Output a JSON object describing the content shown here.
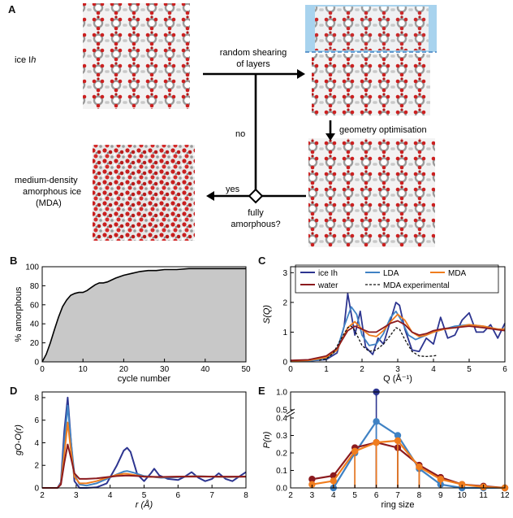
{
  "panels": {
    "A": {
      "label": "A",
      "ice_ih_prefix": "ice I",
      "ice_ih_suffix": "h",
      "shear_line1": "random shearing",
      "shear_line2": "of layers",
      "geometry_opt": "geometry optimisation",
      "no": "no",
      "yes": "yes",
      "mda_line1": "medium-density",
      "mda_line2": "amorphous ice",
      "mda_line3": "(MDA)",
      "decision_line1": "fully",
      "decision_line2": "amorphous?"
    },
    "B": {
      "label": "B"
    },
    "C": {
      "label": "C"
    },
    "D": {
      "label": "D"
    },
    "E": {
      "label": "E"
    }
  },
  "colors": {
    "ice": "#2d3590",
    "lda": "#3f82c4",
    "mda": "#f07d1e",
    "water": "#8b1a1e",
    "exp": "#111111",
    "fill": "#c8c8c8"
  },
  "chart_data": [
    {
      "panel": "B",
      "type": "area",
      "xlabel": "cycle number",
      "ylabel": "% amorphous",
      "xlim": [
        0,
        50
      ],
      "ylim": [
        0,
        100
      ],
      "xticks": [
        0,
        10,
        20,
        30,
        40,
        50
      ],
      "yticks": [
        0,
        20,
        40,
        60,
        80,
        100
      ],
      "x": [
        0,
        1,
        2,
        3,
        4,
        5,
        6,
        7,
        8,
        9,
        10,
        11,
        12,
        13,
        14,
        15,
        16,
        17,
        18,
        20,
        22,
        24,
        26,
        28,
        30,
        33,
        36,
        40,
        45,
        50
      ],
      "y": [
        0,
        8,
        20,
        34,
        47,
        58,
        65,
        70,
        72,
        73,
        73,
        75,
        78,
        81,
        83,
        83,
        84,
        86,
        88,
        91,
        93,
        95,
        96,
        96,
        97,
        97,
        98,
        98,
        98,
        98
      ]
    },
    {
      "panel": "C",
      "type": "line",
      "xlabel": "Q (Å⁻¹)",
      "ylabel": "S(Q)",
      "xlim": [
        0,
        6
      ],
      "ylim": [
        0,
        3.2
      ],
      "xticks": [
        0,
        1,
        2,
        3,
        4,
        5,
        6
      ],
      "yticks": [
        0,
        1,
        2,
        3
      ],
      "legend": [
        "ice Ih",
        "LDA",
        "MDA",
        "water",
        "MDA experimental"
      ],
      "series": [
        {
          "name": "ice Ih",
          "color": "#2d3590",
          "x": [
            0,
            0.5,
            1.0,
            1.3,
            1.5,
            1.6,
            1.7,
            1.8,
            1.95,
            2.1,
            2.3,
            2.45,
            2.6,
            2.8,
            2.95,
            3.05,
            3.2,
            3.4,
            3.6,
            3.8,
            4.0,
            4.2,
            4.4,
            4.6,
            4.8,
            5.0,
            5.2,
            5.4,
            5.6,
            5.8,
            6.0
          ],
          "y": [
            0.02,
            0.03,
            0.08,
            0.3,
            1.2,
            2.3,
            1.6,
            0.9,
            1.7,
            0.5,
            0.25,
            0.8,
            0.6,
            1.4,
            2.0,
            1.9,
            1.1,
            0.4,
            0.35,
            0.8,
            0.6,
            1.5,
            0.8,
            0.9,
            1.4,
            1.65,
            1.0,
            1.0,
            1.25,
            0.8,
            1.3
          ]
        },
        {
          "name": "LDA",
          "color": "#3f82c4",
          "x": [
            0,
            0.5,
            1.0,
            1.3,
            1.5,
            1.7,
            1.85,
            2.0,
            2.2,
            2.4,
            2.6,
            2.8,
            2.95,
            3.1,
            3.3,
            3.5,
            3.7,
            4.0,
            4.3,
            4.6,
            5.0,
            5.4,
            5.8,
            6.0
          ],
          "y": [
            0.02,
            0.03,
            0.1,
            0.4,
            1.2,
            1.85,
            1.6,
            0.9,
            0.55,
            0.6,
            0.95,
            1.5,
            1.7,
            1.4,
            0.9,
            0.75,
            0.85,
            1.0,
            1.1,
            1.2,
            1.25,
            1.2,
            1.1,
            1.1
          ]
        },
        {
          "name": "MDA",
          "color": "#f07d1e",
          "x": [
            0,
            0.5,
            1.0,
            1.3,
            1.6,
            1.8,
            2.0,
            2.2,
            2.4,
            2.6,
            2.8,
            3.0,
            3.2,
            3.4,
            3.6,
            3.8,
            4.0,
            4.3,
            4.6,
            5.0,
            5.4,
            5.8,
            6.0
          ],
          "y": [
            0.03,
            0.05,
            0.15,
            0.4,
            1.15,
            1.35,
            1.1,
            0.9,
            0.85,
            1.05,
            1.35,
            1.6,
            1.4,
            1.0,
            0.85,
            0.9,
            1.0,
            1.1,
            1.15,
            1.25,
            1.2,
            1.1,
            1.1
          ]
        },
        {
          "name": "water",
          "color": "#8b1a1e",
          "x": [
            0,
            0.5,
            1.0,
            1.3,
            1.6,
            1.8,
            2.0,
            2.2,
            2.4,
            2.6,
            2.8,
            3.0,
            3.2,
            3.4,
            3.6,
            3.8,
            4.0,
            4.3,
            4.6,
            5.0,
            5.4,
            5.8,
            6.0
          ],
          "y": [
            0.05,
            0.07,
            0.2,
            0.45,
            1.05,
            1.2,
            1.1,
            1.0,
            1.0,
            1.15,
            1.3,
            1.38,
            1.25,
            1.0,
            0.9,
            0.95,
            1.05,
            1.12,
            1.15,
            1.2,
            1.15,
            1.08,
            1.05
          ]
        },
        {
          "name": "MDA experimental",
          "color": "#111111",
          "dashed": true,
          "x": [
            0.8,
            1.0,
            1.2,
            1.4,
            1.6,
            1.7,
            1.8,
            1.9,
            2.0,
            2.2,
            2.4,
            2.6,
            2.8,
            2.95,
            3.05,
            3.2,
            3.4,
            3.6,
            3.8,
            4.0,
            4.1
          ],
          "y": [
            0.05,
            0.1,
            0.3,
            0.75,
            1.15,
            1.2,
            1.05,
            0.8,
            0.55,
            0.35,
            0.4,
            0.6,
            0.9,
            1.15,
            1.1,
            0.75,
            0.35,
            0.2,
            0.18,
            0.2,
            0.22
          ]
        }
      ]
    },
    {
      "panel": "D",
      "type": "line",
      "xlabel": "r (Å)",
      "ylabel": "gO-O(r)",
      "xlim": [
        2,
        8
      ],
      "ylim": [
        0,
        8.5
      ],
      "xticks": [
        2,
        3,
        4,
        5,
        6,
        7,
        8
      ],
      "yticks": [
        0,
        2,
        4,
        6,
        8
      ],
      "series": [
        {
          "name": "ice Ih",
          "color": "#2d3590",
          "x": [
            2.0,
            2.45,
            2.55,
            2.65,
            2.75,
            2.85,
            2.95,
            3.1,
            3.3,
            3.6,
            3.9,
            4.2,
            4.4,
            4.5,
            4.6,
            4.8,
            5.0,
            5.2,
            5.3,
            5.45,
            5.7,
            6.0,
            6.2,
            6.4,
            6.6,
            6.8,
            7.0,
            7.2,
            7.4,
            7.6,
            7.8,
            8.0
          ],
          "y": [
            0,
            0,
            0.5,
            5.0,
            8.0,
            4.0,
            0.6,
            0,
            0,
            0.05,
            0.4,
            2.0,
            3.3,
            3.55,
            3.2,
            1.2,
            0.6,
            1.3,
            1.7,
            1.1,
            0.8,
            0.7,
            1.0,
            1.4,
            0.9,
            0.6,
            0.8,
            1.3,
            0.8,
            0.6,
            1.0,
            1.4
          ]
        },
        {
          "name": "LDA",
          "color": "#3f82c4",
          "x": [
            2.0,
            2.45,
            2.55,
            2.65,
            2.75,
            2.85,
            2.95,
            3.1,
            3.3,
            3.6,
            3.9,
            4.2,
            4.4,
            4.5,
            4.7,
            5.0,
            5.5,
            6.0,
            6.5,
            7.0,
            7.5,
            8.0
          ],
          "y": [
            0,
            0,
            0.4,
            4.0,
            7.3,
            4.0,
            1.2,
            0.3,
            0.2,
            0.4,
            0.8,
            1.2,
            1.45,
            1.5,
            1.35,
            1.05,
            0.9,
            0.95,
            1.05,
            1.0,
            0.95,
            1.0
          ]
        },
        {
          "name": "MDA",
          "color": "#f07d1e",
          "x": [
            2.0,
            2.45,
            2.55,
            2.65,
            2.75,
            2.85,
            2.95,
            3.1,
            3.3,
            3.6,
            3.9,
            4.2,
            4.4,
            4.5,
            4.7,
            5.0,
            5.5,
            6.0,
            6.5,
            7.0,
            7.5,
            8.0
          ],
          "y": [
            0,
            0,
            0.35,
            3.0,
            5.8,
            3.2,
            1.0,
            0.4,
            0.4,
            0.6,
            0.9,
            1.15,
            1.25,
            1.25,
            1.15,
            1.0,
            0.95,
            1.0,
            1.02,
            1.0,
            0.98,
            1.0
          ]
        },
        {
          "name": "water",
          "color": "#8b1a1e",
          "x": [
            2.0,
            2.45,
            2.55,
            2.65,
            2.75,
            2.85,
            2.95,
            3.1,
            3.3,
            3.6,
            3.9,
            4.2,
            4.5,
            4.8,
            5.0,
            5.5,
            6.0,
            6.5,
            7.0,
            7.5,
            8.0
          ],
          "y": [
            0,
            0,
            0.3,
            2.2,
            3.85,
            2.6,
            1.3,
            0.8,
            0.8,
            0.85,
            0.95,
            1.05,
            1.1,
            1.05,
            1.0,
            0.97,
            1.0,
            1.0,
            1.0,
            1.0,
            1.0
          ]
        }
      ]
    },
    {
      "panel": "E",
      "type": "line",
      "xlabel": "ring size",
      "ylabel": "P(n)",
      "xlim": [
        2,
        12
      ],
      "ylim": [
        0,
        1.0
      ],
      "axis_break": [
        0.4,
        0.5
      ],
      "xticks": [
        2,
        3,
        4,
        5,
        6,
        7,
        8,
        9,
        10,
        11,
        12
      ],
      "yticks": [
        0,
        0.1,
        0.2,
        0.3,
        0.4,
        0.5,
        1.0
      ],
      "ytick_labels": [
        "0.0",
        "0.1",
        "0.2",
        "0.3",
        "0.4",
        "0.5",
        "1.0"
      ],
      "series": [
        {
          "name": "ice Ih",
          "color": "#2d3590",
          "x": [
            6
          ],
          "y": [
            1.0
          ],
          "err": [
            0.12
          ]
        },
        {
          "name": "LDA",
          "color": "#3f82c4",
          "x": [
            4,
            5,
            6,
            7,
            8,
            9,
            10,
            11,
            12
          ],
          "y": [
            0.0,
            0.2,
            0.38,
            0.3,
            0.11,
            0.02,
            0.0,
            0.0,
            0.0
          ]
        },
        {
          "name": "water",
          "color": "#8b1a1e",
          "x": [
            3,
            4,
            5,
            6,
            7,
            8,
            9,
            10,
            11,
            12
          ],
          "y": [
            0.05,
            0.07,
            0.23,
            0.26,
            0.23,
            0.13,
            0.06,
            0.02,
            0.01,
            0.0
          ]
        },
        {
          "name": "MDA",
          "color": "#f07d1e",
          "x": [
            3,
            4,
            5,
            6,
            7,
            8,
            9,
            10,
            11,
            12
          ],
          "y": [
            0.02,
            0.04,
            0.21,
            0.26,
            0.27,
            0.12,
            0.05,
            0.02,
            0.005,
            0.0
          ]
        }
      ]
    }
  ]
}
